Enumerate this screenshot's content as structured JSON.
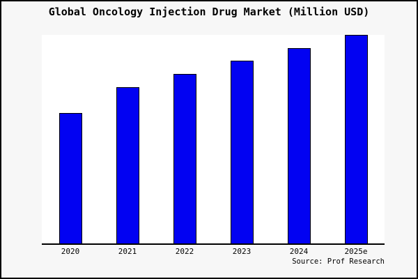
{
  "chart_data": {
    "type": "bar",
    "title": "Global Oncology Injection Drug Market (Million USD)",
    "categories": [
      "2020",
      "2021",
      "2022",
      "2023",
      "2024",
      "2025e"
    ],
    "values": [
      62.5,
      74.9,
      81.3,
      87.6,
      93.6,
      100
    ],
    "value_scale": "relative height, tallest bar (2025e) = 100; y-axis has no tick labels in source image",
    "xlabel": "",
    "ylabel": "",
    "ylim": [
      0,
      100
    ],
    "grid": false,
    "legend": false,
    "bar_color": "#0202f2",
    "bar_border_color": "#000000",
    "source_label": "Source: Prof Research"
  },
  "colors": {
    "page_background": "#f7f7f7",
    "plot_background": "#ffffff",
    "frame_border": "#000000",
    "axis_line": "#000000",
    "text": "#000000"
  }
}
